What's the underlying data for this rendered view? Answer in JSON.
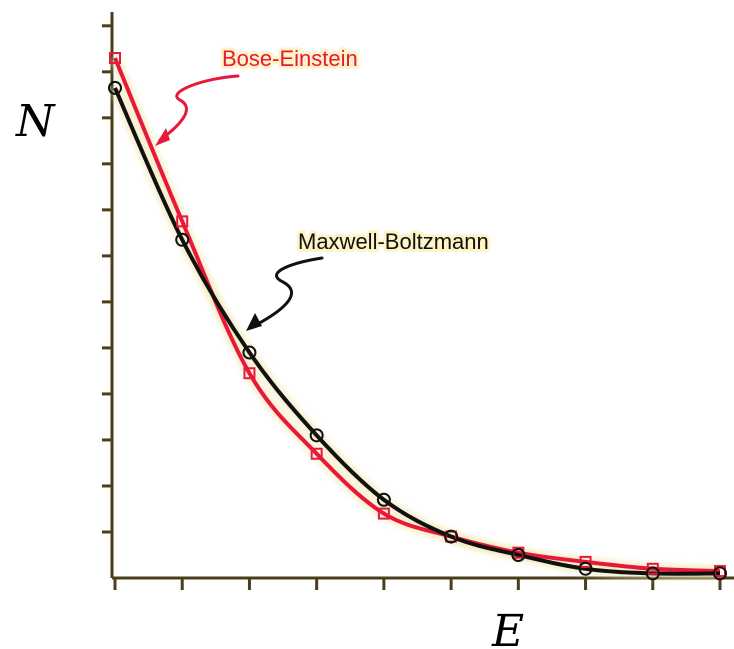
{
  "chart_data": {
    "type": "line",
    "xlabel": "N",
    "ylabel": "",
    "xaxis_label": "E",
    "yaxis_label": "N",
    "xlim": [
      0,
      9.3
    ],
    "ylim": [
      0,
      24.6
    ],
    "grid": false,
    "legend": "none",
    "series": [
      {
        "name": "Bose-Einstein",
        "color": "#e8183c",
        "x": [
          0,
          1,
          2,
          3,
          4,
          5,
          6,
          7,
          8,
          9
        ],
        "values": [
          22.6,
          15.5,
          8.9,
          5.4,
          2.8,
          1.8,
          1.1,
          0.7,
          0.4,
          0.3
        ]
      },
      {
        "name": "Maxwell-Boltzmann",
        "color": "#111111",
        "x": [
          0,
          1,
          2,
          3,
          4,
          5,
          6,
          7,
          8,
          9
        ],
        "values": [
          21.3,
          14.7,
          9.8,
          6.2,
          3.4,
          1.8,
          1.0,
          0.4,
          0.2,
          0.2
        ]
      }
    ],
    "annotations": [
      {
        "text": "Bose-Einstein",
        "color": "#e8183c",
        "series": "Bose-Einstein"
      },
      {
        "text": "Maxwell-Boltzmann",
        "color": "#111111",
        "series": "Maxwell-Boltzmann"
      }
    ]
  }
}
